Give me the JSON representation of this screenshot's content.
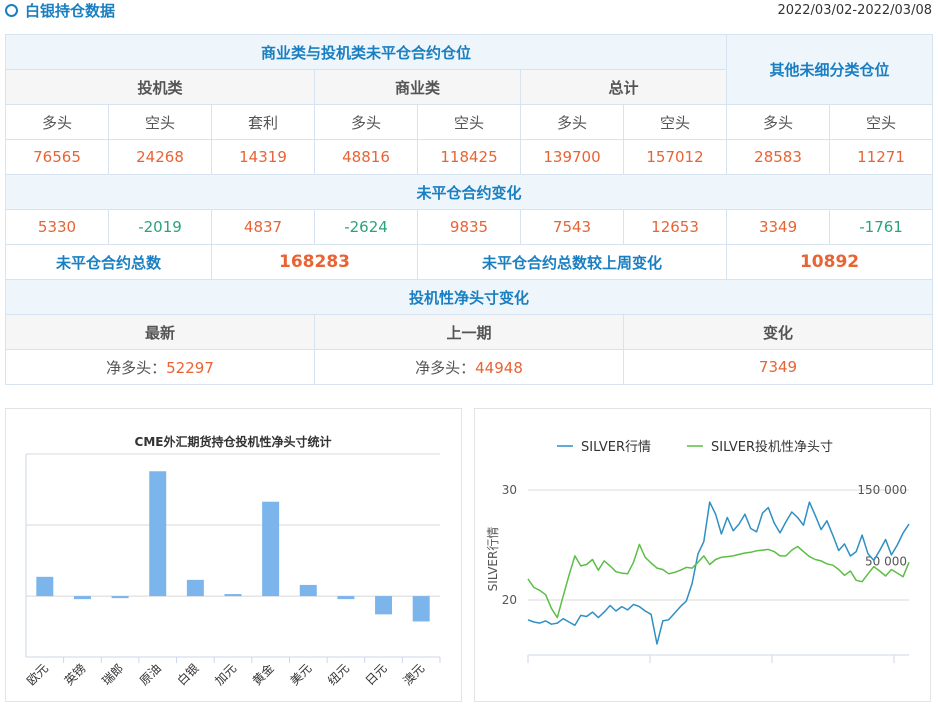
{
  "header": {
    "title": "白银持仓数据",
    "date": "2022/03/02-2022/03/08"
  },
  "table": {
    "group_header": "商业类与投机类未平仓合约仓位",
    "other_header": "其他未细分类仓位",
    "sub_headers": [
      "投机类",
      "商业类",
      "总计"
    ],
    "col_headers": [
      "多头",
      "空头",
      "套利",
      "多头",
      "空头",
      "多头",
      "空头",
      "多头",
      "空头"
    ],
    "positions": [
      "76565",
      "24268",
      "14319",
      "48816",
      "118425",
      "139700",
      "157012",
      "28583",
      "11271"
    ],
    "change_title": "未平仓合约变化",
    "changes": [
      "5330",
      "-2019",
      "4837",
      "-2624",
      "9835",
      "7543",
      "12653",
      "3349",
      "-1761"
    ],
    "total_label": "未平仓合约总数",
    "total_value": "168283",
    "weekly_label": "未平仓合约总数较上周变化",
    "weekly_value": "10892",
    "net_title": "投机性净头寸变化",
    "net_headers": [
      "最新",
      "上一期",
      "变化"
    ],
    "net_prefix": "净多头：",
    "net_latest": "52297",
    "net_prev": "44948",
    "net_change": "7349"
  },
  "chart_data": [
    {
      "type": "bar",
      "title": "CME外汇期货持仓投机性净头寸统计",
      "categories": [
        "欧元",
        "英镑",
        "瑞郎",
        "原油",
        "白银",
        "加元",
        "黄金",
        "美元",
        "纽元",
        "日元",
        "澳元"
      ],
      "values": [
        19000,
        -3000,
        -2000,
        123000,
        16000,
        2000,
        93000,
        11000,
        -3000,
        -18000,
        -25000
      ],
      "ylim": [
        -60000,
        140000
      ],
      "grid": true,
      "color": "#7cb5ec"
    },
    {
      "type": "line",
      "legend_position": "top",
      "ylabel": "SILVER行情",
      "left_ticks": [
        "30",
        "20"
      ],
      "right_ticks": [
        "150 000",
        "50 000"
      ],
      "ylim_left": [
        15,
        31
      ],
      "ylim_right": [
        -80000,
        165000
      ],
      "series": [
        {
          "name": "SILVER行情",
          "color": "#2f8fc4",
          "axis": "left",
          "values": [
            18.2,
            18.0,
            17.9,
            18.1,
            17.8,
            17.9,
            18.3,
            18.0,
            17.7,
            18.6,
            18.5,
            18.9,
            18.4,
            18.9,
            19.5,
            19.0,
            19.4,
            19.1,
            19.6,
            19.4,
            19.0,
            18.7,
            16.0,
            18.1,
            18.2,
            18.8,
            19.4,
            19.9,
            21.5,
            24.2,
            25.3,
            28.9,
            27.8,
            26.0,
            27.5,
            26.3,
            26.9,
            27.8,
            26.5,
            26.2,
            27.9,
            28.4,
            27.0,
            26.1,
            27.1,
            28.0,
            27.5,
            26.8,
            28.9,
            27.7,
            26.4,
            27.2,
            25.9,
            24.5,
            25.1,
            24.0,
            24.4,
            25.9,
            24.2,
            23.6,
            24.5,
            25.5,
            24.1,
            25.0,
            26.1,
            26.9
          ]
        },
        {
          "name": "SILVER投机性净头寸",
          "color": "#5bbe46",
          "axis": "right",
          "values": [
            26000,
            14000,
            10000,
            4000,
            -15000,
            -28000,
            2000,
            31000,
            58000,
            44000,
            46000,
            53000,
            38000,
            51000,
            44000,
            36000,
            34000,
            33000,
            49000,
            74000,
            56000,
            48000,
            41000,
            39000,
            33000,
            35000,
            38000,
            42000,
            41000,
            49000,
            58000,
            46000,
            53000,
            56000,
            57000,
            58000,
            60000,
            62000,
            63000,
            65000,
            66000,
            67000,
            64000,
            58000,
            58000,
            66000,
            71000,
            64000,
            57000,
            53000,
            51000,
            47000,
            45000,
            39000,
            31000,
            37000,
            24000,
            22000,
            33000,
            43000,
            37000,
            30000,
            39000,
            34000,
            29000,
            49000
          ]
        }
      ]
    }
  ]
}
